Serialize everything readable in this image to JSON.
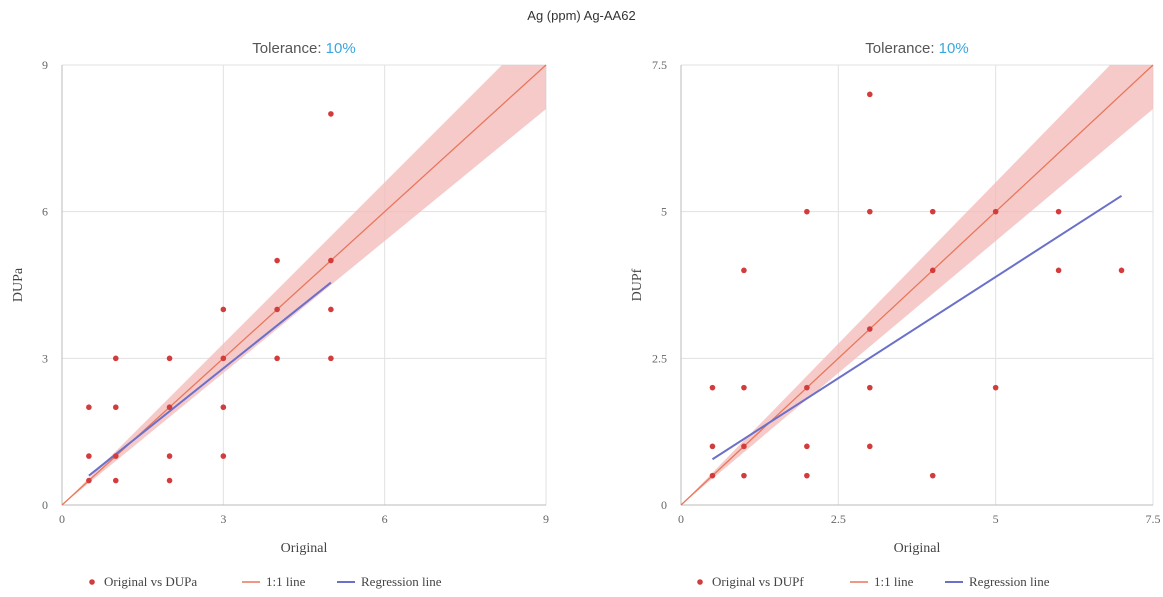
{
  "page_title": "Ag (ppm) Ag-AA62",
  "colors": {
    "points": "#d33c3c",
    "identity_line": "#e8775a",
    "tolerance_band": "#f4b8b8",
    "regression": "#6b70c9",
    "accent": "#3aa7e0",
    "grid": "#e1e1e1"
  },
  "chart_data": [
    {
      "type": "scatter",
      "subtitle_prefix": "Tolerance: ",
      "subtitle_value": "10%",
      "tolerance": 0.1,
      "xlabel": "Original",
      "ylabel": "DUPa",
      "xlim": [
        0,
        9
      ],
      "ylim": [
        0,
        9
      ],
      "xticks": [
        0,
        3,
        6,
        9
      ],
      "xtick_labels": [
        "0",
        "3",
        "6",
        "9"
      ],
      "yticks": [
        0,
        3,
        6,
        9
      ],
      "ytick_labels": [
        "0",
        "3",
        "6",
        "9"
      ],
      "grid": true,
      "legend_position": "bottom",
      "legend": [
        "Original vs DUPa",
        "1:1 line",
        "Regression line"
      ],
      "points": [
        [
          0.5,
          2
        ],
        [
          0.5,
          1
        ],
        [
          0.5,
          0.5
        ],
        [
          1,
          3
        ],
        [
          1,
          2
        ],
        [
          1,
          1
        ],
        [
          1,
          0.5
        ],
        [
          2,
          3
        ],
        [
          2,
          2
        ],
        [
          2,
          1
        ],
        [
          2,
          0.5
        ],
        [
          3,
          4
        ],
        [
          3,
          3
        ],
        [
          3,
          2
        ],
        [
          3,
          1
        ],
        [
          4,
          5
        ],
        [
          4,
          4
        ],
        [
          4,
          3
        ],
        [
          5,
          8
        ],
        [
          5,
          5
        ],
        [
          5,
          4
        ],
        [
          5,
          3
        ]
      ],
      "regression": {
        "x": [
          0.5,
          5
        ],
        "y": [
          0.6,
          4.55
        ]
      }
    },
    {
      "type": "scatter",
      "subtitle_prefix": "Tolerance: ",
      "subtitle_value": "10%",
      "tolerance": 0.1,
      "xlabel": "Original",
      "ylabel": "DUPf",
      "xlim": [
        0,
        7.5
      ],
      "ylim": [
        0,
        7.5
      ],
      "xticks": [
        0,
        2.5,
        5,
        7.5
      ],
      "xtick_labels": [
        "0",
        "2.5",
        "5",
        "7.5"
      ],
      "yticks": [
        0,
        2.5,
        5,
        7.5
      ],
      "ytick_labels": [
        "0",
        "2.5",
        "5",
        "7.5"
      ],
      "grid": true,
      "legend_position": "bottom",
      "legend": [
        "Original vs DUPf",
        "1:1 line",
        "Regression line"
      ],
      "points": [
        [
          0.5,
          2
        ],
        [
          0.5,
          1
        ],
        [
          0.5,
          0.5
        ],
        [
          1,
          4
        ],
        [
          1,
          2
        ],
        [
          1,
          1
        ],
        [
          1,
          0.5
        ],
        [
          2,
          5
        ],
        [
          2,
          2
        ],
        [
          2,
          1
        ],
        [
          2,
          0.5
        ],
        [
          3,
          7
        ],
        [
          3,
          5
        ],
        [
          3,
          3
        ],
        [
          3,
          2
        ],
        [
          3,
          1
        ],
        [
          4,
          5
        ],
        [
          4,
          4
        ],
        [
          4,
          0.5
        ],
        [
          5,
          5
        ],
        [
          5,
          2
        ],
        [
          6,
          5
        ],
        [
          6,
          4
        ],
        [
          7,
          4
        ]
      ],
      "regression": {
        "x": [
          0.5,
          7
        ],
        "y": [
          0.78,
          5.27
        ]
      }
    }
  ]
}
